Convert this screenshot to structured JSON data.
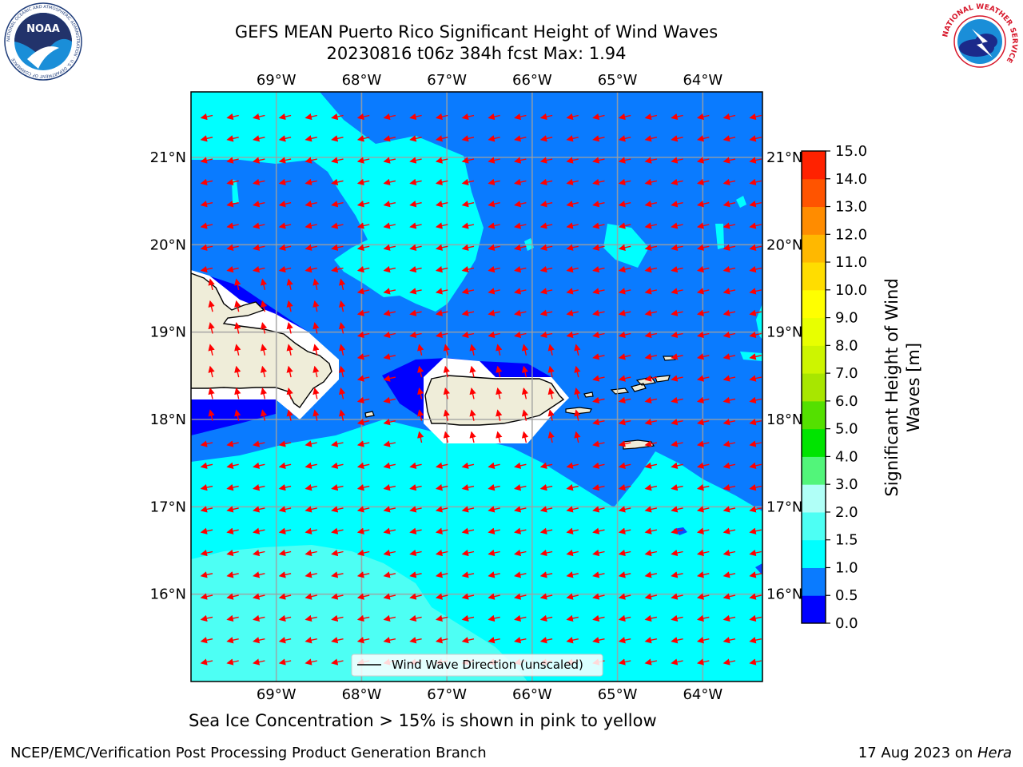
{
  "title": {
    "line1": "GEFS MEAN Puerto Rico Significant Height of Wind Waves",
    "line2": "20230816 t06z 384h fcst   Max: 1.94"
  },
  "map": {
    "lon_labels": [
      "69°W",
      "68°W",
      "67°W",
      "66°W",
      "65°W",
      "64°W"
    ],
    "lat_labels": [
      "21°N",
      "20°N",
      "19°N",
      "18°N",
      "17°N",
      "16°N"
    ],
    "lon_values": [
      -69,
      -68,
      -67,
      -66,
      -65,
      -64
    ],
    "lat_values": [
      21,
      20,
      19,
      18,
      17,
      16
    ],
    "extent": {
      "lon_min": -70,
      "lon_max": -63.3,
      "lat_min": 15.0,
      "lat_max": 21.75
    },
    "legend_label": "Wind Wave Direction (unscaled)",
    "arrow_color": "#ff0000",
    "land_color": "#efedd9",
    "grid_lines": true
  },
  "colorbar": {
    "label": "Significant Height of Wind Waves [m]",
    "label_line1": "Significant Height of Wind",
    "label_line2": "Waves [m]",
    "ticks": [
      "15.0",
      "14.0",
      "13.0",
      "12.0",
      "11.0",
      "10.0",
      "9.0",
      "8.0",
      "7.0",
      "6.0",
      "5.0",
      "4.0",
      "3.0",
      "2.0",
      "1.5",
      "1.0",
      "0.5",
      "0.0"
    ],
    "colors": [
      "#0000ff",
      "#0a7bff",
      "#00ffff",
      "#4dfff4",
      "#b0fff7",
      "#52f57a",
      "#00e400",
      "#54e000",
      "#a8e600",
      "#cdf500",
      "#e8ff00",
      "#ffff00",
      "#ffdd00",
      "#ffb800",
      "#ff8c00",
      "#ff5400",
      "#ff2200"
    ]
  },
  "bottom_note": "Sea Ice Concentration > 15% is shown in pink to yellow",
  "footer": {
    "left": "NCEP/EMC/Verification Post Processing Product Generation Branch",
    "right_prefix": "17 Aug 2023 on ",
    "right_host": "Hera"
  },
  "logos": {
    "noaa_text": "NOAA",
    "noaa_ring": "NATIONAL OCEANIC AND ATMOSPHERIC ADMINISTRATION · U.S. DEPARTMENT OF COMMERCE",
    "nws_ring": "NATIONAL WEATHER SERVICE"
  }
}
